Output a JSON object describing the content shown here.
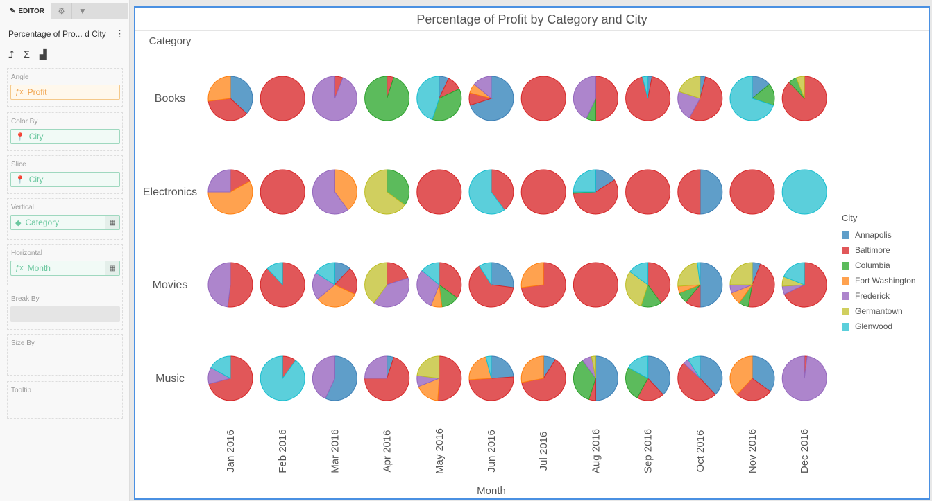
{
  "editor": {
    "tab_label": "EDITOR",
    "title": "Percentage of Pro... d City",
    "sections": [
      {
        "label": "Angle",
        "value": "Profit",
        "icon": "fx-icon"
      },
      {
        "label": "Color By",
        "value": "City",
        "icon": "location-pin-icon"
      },
      {
        "label": "Slice",
        "value": "City",
        "icon": "location-pin-icon"
      },
      {
        "label": "Vertical",
        "value": "Category",
        "icon": "diamond-icon"
      },
      {
        "label": "Horizontal",
        "value": "Month",
        "icon": "fx-icon"
      },
      {
        "label": "Break By",
        "value": ""
      },
      {
        "label": "Size By",
        "value": ""
      },
      {
        "label": "Tooltip",
        "value": ""
      }
    ]
  },
  "chart_data": {
    "type": "pie",
    "title": "Percentage of Profit by Category and City",
    "row_axis_label": "Category",
    "column_axis_label": "Month",
    "rows": [
      "Books",
      "Electronics",
      "Movies",
      "Music"
    ],
    "columns": [
      "Jan 2016",
      "Feb 2016",
      "Mar 2016",
      "Apr 2016",
      "May 2016",
      "Jun 2016",
      "Jul 2016",
      "Aug 2016",
      "Sep 2016",
      "Oct 2016",
      "Nov 2016",
      "Dec 2016"
    ],
    "legend_title": "City",
    "legend_position": "right",
    "series": [
      {
        "name": "Annapolis",
        "color": "#5f9ec9"
      },
      {
        "name": "Baltimore",
        "color": "#e15759"
      },
      {
        "name": "Columbia",
        "color": "#5cbb5c"
      },
      {
        "name": "Fort Washington",
        "color": "#ffa24f"
      },
      {
        "name": "Frederick",
        "color": "#ad85cc"
      },
      {
        "name": "Germantown",
        "color": "#d0cf5f"
      },
      {
        "name": "Glenwood",
        "color": "#5bcfdb"
      }
    ],
    "values_percent": [
      [
        [
          37,
          36,
          0,
          27,
          0,
          0,
          0
        ],
        [
          0,
          100,
          0,
          0,
          0,
          0,
          0
        ],
        [
          0,
          6,
          0,
          0,
          94,
          0,
          0
        ],
        [
          0,
          5,
          95,
          0,
          0,
          0,
          0
        ],
        [
          7,
          11,
          37,
          0,
          0,
          0,
          45
        ],
        [
          70,
          9,
          0,
          7,
          14,
          0,
          0
        ],
        [
          0,
          100,
          0,
          0,
          0,
          0,
          0
        ],
        [
          0,
          50,
          7,
          0,
          43,
          0,
          0
        ],
        [
          3,
          93,
          0,
          0,
          0,
          0,
          4
        ],
        [
          4,
          54,
          0,
          0,
          22,
          20,
          0
        ],
        [
          14,
          0,
          16,
          0,
          0,
          0,
          70
        ],
        [
          0,
          88,
          6,
          0,
          0,
          6,
          0
        ]
      ],
      [
        [
          0,
          17,
          0,
          58,
          25,
          0,
          0
        ],
        [
          0,
          100,
          0,
          0,
          0,
          0,
          0
        ],
        [
          0,
          0,
          0,
          40,
          60,
          0,
          0
        ],
        [
          0,
          0,
          35,
          0,
          0,
          65,
          0
        ],
        [
          0,
          100,
          0,
          0,
          0,
          0,
          0
        ],
        [
          0,
          40,
          0,
          0,
          0,
          0,
          60
        ],
        [
          0,
          100,
          0,
          0,
          0,
          0,
          0
        ],
        [
          16,
          58,
          1,
          0,
          0,
          0,
          25
        ],
        [
          0,
          100,
          0,
          0,
          0,
          0,
          0
        ],
        [
          50,
          50,
          0,
          0,
          0,
          0,
          0
        ],
        [
          0,
          100,
          0,
          0,
          0,
          0,
          0
        ],
        [
          0,
          0,
          0,
          0,
          0,
          0,
          100
        ]
      ],
      [
        [
          0,
          52,
          0,
          0,
          48,
          0,
          0
        ],
        [
          0,
          88,
          0,
          0,
          0,
          0,
          12
        ],
        [
          12,
          20,
          0,
          32,
          20,
          0,
          16
        ],
        [
          0,
          20,
          0,
          0,
          40,
          40,
          0
        ],
        [
          0,
          35,
          13,
          8,
          30,
          0,
          14
        ],
        [
          27,
          64,
          0,
          0,
          0,
          0,
          9
        ],
        [
          0,
          73,
          0,
          27,
          0,
          0,
          0
        ],
        [
          0,
          100,
          0,
          0,
          0,
          0,
          0
        ],
        [
          0,
          40,
          15,
          0,
          0,
          30,
          15
        ],
        [
          50,
          11,
          8,
          5,
          0,
          24,
          2
        ],
        [
          6,
          47,
          7,
          9,
          6,
          25,
          0
        ],
        [
          0,
          68,
          0,
          0,
          6,
          7,
          19
        ]
      ],
      [
        [
          0,
          71,
          0,
          0,
          12,
          0,
          17
        ],
        [
          0,
          10,
          0,
          0,
          0,
          0,
          90
        ],
        [
          57,
          0,
          0,
          0,
          43,
          0,
          0
        ],
        [
          5,
          70,
          0,
          0,
          25,
          0,
          0
        ],
        [
          0,
          51,
          0,
          18,
          8,
          23,
          0
        ],
        [
          24,
          50,
          0,
          22,
          0,
          0,
          4
        ],
        [
          9,
          63,
          0,
          28,
          0,
          0,
          0
        ],
        [
          50,
          5,
          35,
          0,
          7,
          3,
          0
        ],
        [
          38,
          20,
          25,
          0,
          0,
          0,
          17
        ],
        [
          38,
          49,
          0,
          0,
          4,
          0,
          9
        ],
        [
          35,
          27,
          0,
          38,
          0,
          0,
          0
        ],
        [
          0,
          2,
          0,
          0,
          98,
          0,
          0
        ]
      ]
    ]
  }
}
